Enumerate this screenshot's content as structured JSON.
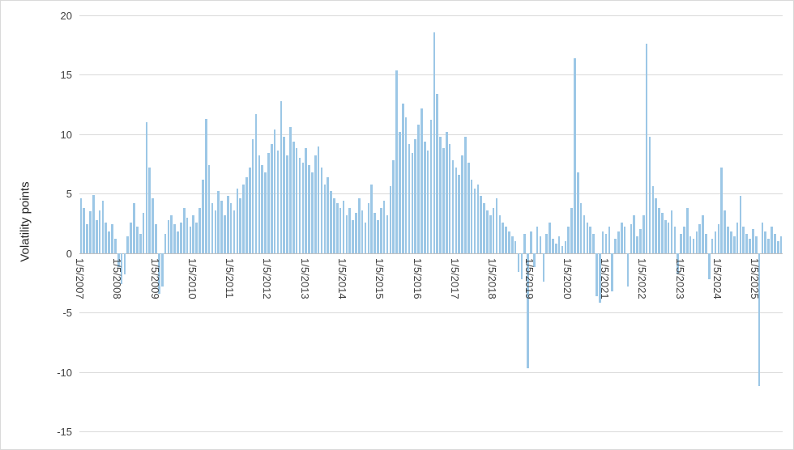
{
  "chart_data": {
    "type": "bar",
    "title": "",
    "xlabel": "",
    "ylabel": "Volatility points",
    "ylim": [
      -15,
      20
    ],
    "yticks": [
      20,
      15,
      10,
      5,
      0,
      -5,
      -10,
      -15
    ],
    "grid": "horizontal",
    "legend": "none",
    "bar_color": "#9cc7e6",
    "gridline_color": "#d9d9d9",
    "x_tick_labels": [
      "1/5/2007",
      "1/5/2008",
      "1/5/2009",
      "1/5/2010",
      "1/5/2011",
      "1/5/2012",
      "1/5/2013",
      "1/5/2014",
      "1/5/2015",
      "1/5/2016",
      "1/5/2017",
      "1/5/2018",
      "1/5/2019",
      "1/5/2020",
      "1/5/2021",
      "1/5/2022",
      "1/5/2023",
      "1/5/2024",
      "1/5/2025"
    ],
    "x_start_label": "1/5/2007",
    "points_per_year": 12,
    "values": [
      4.6,
      3.8,
      2.4,
      3.5,
      4.9,
      2.8,
      3.6,
      4.4,
      2.6,
      1.8,
      2.4,
      1.2,
      -1.2,
      -2.6,
      -1.8,
      1.4,
      2.6,
      4.2,
      2.2,
      1.6,
      3.4,
      11.0,
      7.2,
      4.6,
      2.4,
      -3.4,
      -2.8,
      1.6,
      2.8,
      3.2,
      2.4,
      1.8,
      2.6,
      3.8,
      3.0,
      2.2,
      3.2,
      2.6,
      3.8,
      6.2,
      11.3,
      7.4,
      4.2,
      3.6,
      5.2,
      4.4,
      3.2,
      4.8,
      4.2,
      3.6,
      5.4,
      4.6,
      5.8,
      6.4,
      7.2,
      9.6,
      11.7,
      8.2,
      7.4,
      6.8,
      8.4,
      9.2,
      10.4,
      8.6,
      12.8,
      9.8,
      8.2,
      10.6,
      9.4,
      8.8,
      8.0,
      7.6,
      8.8,
      7.4,
      6.8,
      8.2,
      9.0,
      7.2,
      5.8,
      6.4,
      5.2,
      4.6,
      4.2,
      3.8,
      4.4,
      3.2,
      3.8,
      2.8,
      3.4,
      4.6,
      3.6,
      2.6,
      4.2,
      5.8,
      3.4,
      2.8,
      3.8,
      4.4,
      3.2,
      5.6,
      7.8,
      15.4,
      10.2,
      12.6,
      11.4,
      9.2,
      8.4,
      9.6,
      10.8,
      12.2,
      9.4,
      8.6,
      11.2,
      18.6,
      13.4,
      9.8,
      8.8,
      10.2,
      9.2,
      7.8,
      7.2,
      6.6,
      8.2,
      9.8,
      7.6,
      6.2,
      5.4,
      5.8,
      4.8,
      4.2,
      3.6,
      3.2,
      3.8,
      4.6,
      3.2,
      2.6,
      2.2,
      1.8,
      1.4,
      1.0,
      -1.6,
      -2.2,
      1.6,
      -9.7,
      1.8,
      -1.2,
      2.2,
      1.4,
      -2.4,
      1.6,
      2.6,
      1.2,
      0.8,
      1.4,
      0.6,
      1.0,
      2.2,
      3.8,
      16.4,
      6.8,
      4.2,
      3.2,
      2.6,
      2.2,
      1.6,
      -3.6,
      -4.2,
      1.8,
      1.6,
      2.2,
      -3.2,
      1.2,
      1.8,
      2.6,
      2.2,
      -2.8,
      2.4,
      3.2,
      1.4,
      2.0,
      3.2,
      17.6,
      9.8,
      5.6,
      4.6,
      3.8,
      3.4,
      2.8,
      2.6,
      3.6,
      2.2,
      -1.8,
      1.6,
      2.2,
      3.8,
      1.4,
      1.2,
      1.8,
      2.4,
      3.2,
      1.6,
      -2.2,
      1.2,
      1.8,
      2.4,
      7.2,
      3.6,
      2.2,
      1.8,
      1.4,
      2.6,
      4.8,
      2.2,
      1.6,
      1.2,
      2.0,
      1.4,
      -11.2,
      2.6,
      1.8,
      1.2,
      2.2,
      1.6,
      1.0,
      1.4
    ]
  }
}
